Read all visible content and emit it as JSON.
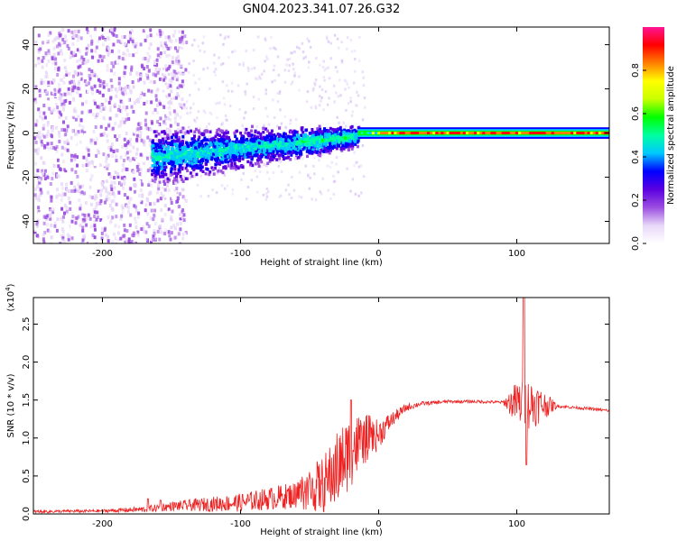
{
  "title": "GN04.2023.341.07.26.G32",
  "chart_data": [
    {
      "type": "heatmap",
      "xlabel": "Height of straight line (km)",
      "ylabel": "Frequency (Hz)",
      "xlim": [
        -250,
        167
      ],
      "ylim": [
        -50,
        48
      ],
      "x_ticks": [
        "-200",
        "-100",
        "0",
        "100"
      ],
      "y_ticks": [
        "-40",
        "-20",
        "0",
        "20",
        "40"
      ],
      "colorbar": {
        "label": "Normalized spectral amplitude",
        "range": [
          0.0,
          1.0
        ],
        "ticks": [
          "0.0",
          "0.2",
          "0.4",
          "0.6",
          "0.8"
        ],
        "colors": [
          "#ffffff",
          "#e8d8f8",
          "#9b4de0",
          "#5a00e0",
          "#0000ff",
          "#00c8ff",
          "#00ffa0",
          "#00ff00",
          "#c8ff00",
          "#ffff00",
          "#ff8000",
          "#ff0000",
          "#ff1493"
        ]
      },
      "features": {
        "noise_region_x": [
          -250,
          -160
        ],
        "diffuse_band_x": [
          -165,
          -15
        ],
        "narrow_line_x": [
          -15,
          167
        ],
        "narrow_line_freq_hz": 0,
        "strong_signal_from_x": 0
      }
    },
    {
      "type": "line",
      "xlabel": "Height of straight line (km)",
      "ylabel": "SNR (10 * v/v)",
      "y_multiplier_label": "(x10",
      "y_multiplier_exp": "4",
      "y_multiplier_close": ")",
      "xlim": [
        -250,
        167
      ],
      "ylim": [
        0.0,
        2.85
      ],
      "x_ticks": [
        "-200",
        "-100",
        "0",
        "100"
      ],
      "y_ticks": [
        "0.0",
        "0.5",
        "1.0",
        "1.5",
        "2.0",
        "2.5"
      ],
      "series": [
        {
          "color": "#ee2020",
          "envelope_x": [
            -250,
            -200,
            -170,
            -150,
            -120,
            -100,
            -80,
            -60,
            -40,
            -30,
            -20,
            -10,
            0,
            10,
            20,
            30,
            50,
            70,
            90,
            100,
            110,
            130,
            150,
            167
          ],
          "envelope_y": [
            0.03,
            0.04,
            0.06,
            0.1,
            0.13,
            0.15,
            0.2,
            0.25,
            0.35,
            0.55,
            0.8,
            0.95,
            1.05,
            1.25,
            1.4,
            1.45,
            1.48,
            1.48,
            1.47,
            1.46,
            1.45,
            1.42,
            1.39,
            1.36
          ],
          "noise_amp": [
            0.02,
            0.02,
            0.04,
            0.06,
            0.1,
            0.12,
            0.15,
            0.18,
            0.35,
            0.45,
            0.45,
            0.3,
            0.2,
            0.1,
            0.05,
            0.03,
            0.02,
            0.02,
            0.02,
            0.3,
            0.35,
            0.02,
            0.02,
            0.02
          ],
          "peaks": [
            {
              "x": -167,
              "y": 0.2
            },
            {
              "x": -158,
              "y": 0.18
            },
            {
              "x": -20,
              "y": 1.5
            },
            {
              "x": 105,
              "y": 2.85
            },
            {
              "x": 107,
              "y": 0.65
            }
          ]
        }
      ]
    }
  ]
}
